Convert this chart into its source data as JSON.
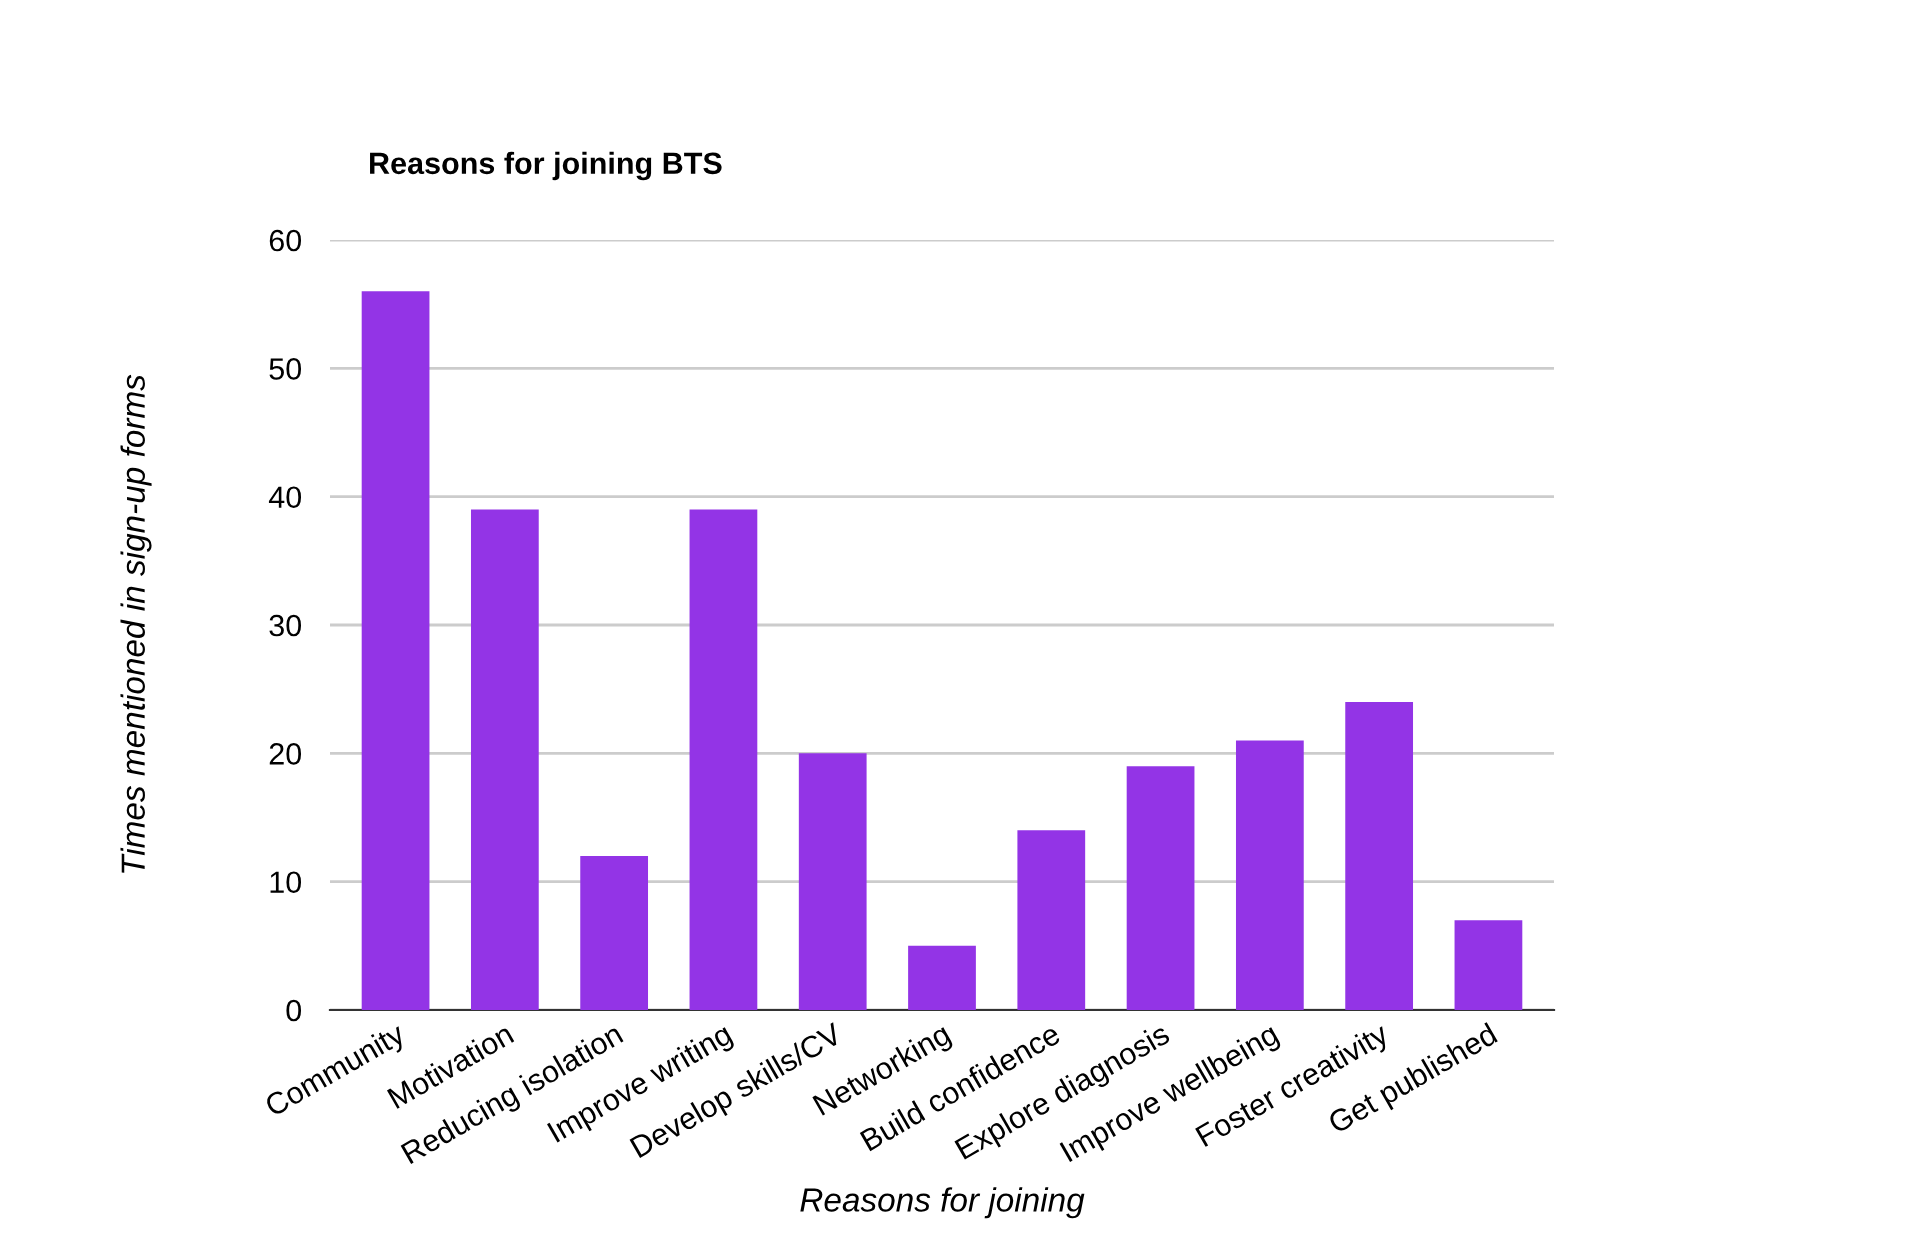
{
  "chart_data": {
    "type": "bar",
    "title": "Reasons for joining BTS",
    "xlabel": "Reasons for joining",
    "ylabel": "Times mentioned in sign-up forms",
    "categories": [
      "Community",
      "Motivation",
      "Reducing isolation",
      "Improve writing",
      "Develop skills/CV",
      "Networking",
      "Build confidence",
      "Explore diagnosis",
      "Improve wellbeing",
      "Foster creativity",
      "Get published"
    ],
    "values": [
      56,
      39,
      12,
      39,
      20,
      5,
      14,
      19,
      21,
      24,
      7
    ],
    "color": "#9334e6",
    "ylim": [
      0,
      60
    ],
    "yticks": [
      0,
      10,
      20,
      30,
      40,
      50,
      60
    ],
    "grid": "y"
  }
}
